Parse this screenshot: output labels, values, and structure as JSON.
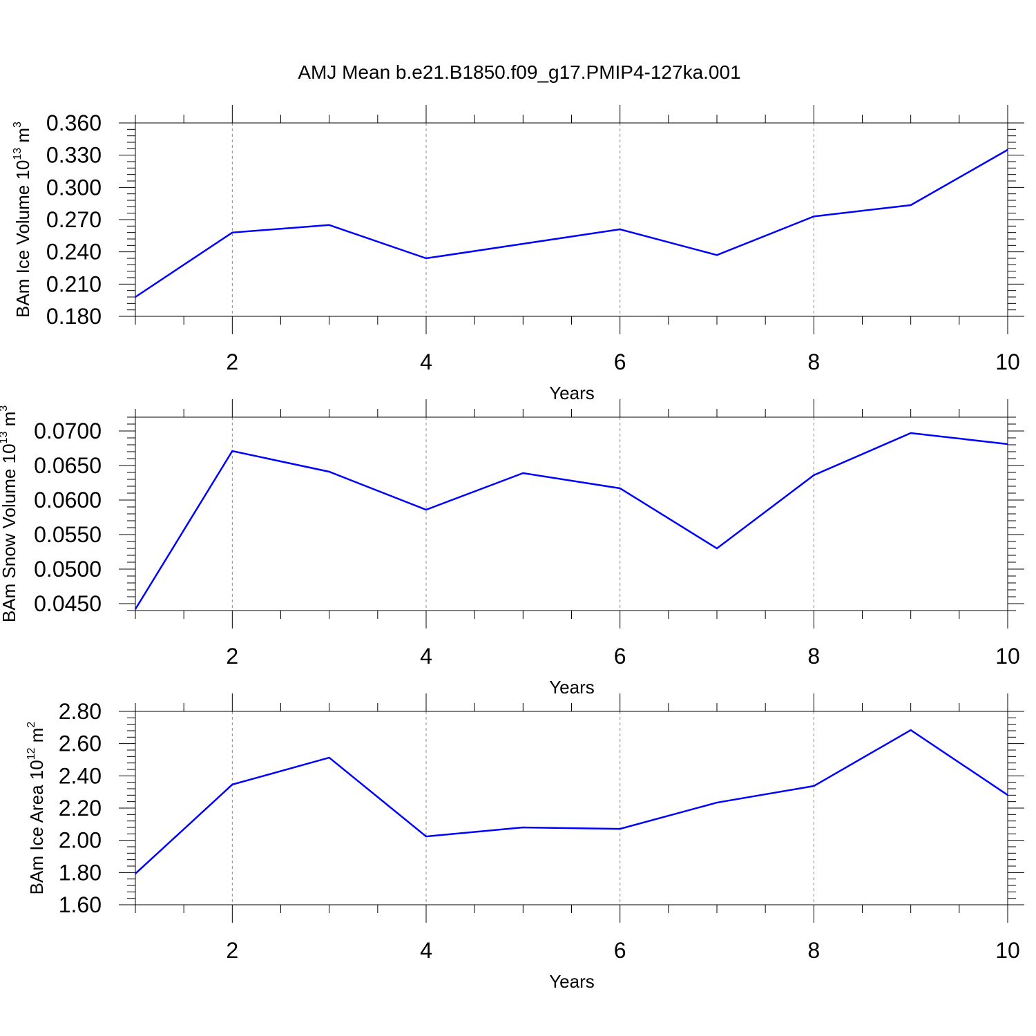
{
  "title": "AMJ Mean b.e21.B1850.f09_g17.PMIP4-127ka.001",
  "line_color": "#0000ff",
  "chart_data": [
    {
      "type": "line",
      "xlabel": "Years",
      "ylabel": {
        "text": "BAm Ice Volume 10",
        "sup1": "13",
        "unit": " m",
        "sup2": "3"
      },
      "x": [
        1,
        2,
        3,
        4,
        5,
        6,
        7,
        8,
        9,
        10
      ],
      "values": [
        0.198,
        0.258,
        0.265,
        0.234,
        0.2475,
        0.261,
        0.237,
        0.273,
        0.2835,
        0.335
      ],
      "xlim": [
        1,
        10
      ],
      "ylim": [
        0.18,
        0.36
      ],
      "xticks": [
        2,
        4,
        6,
        8,
        10
      ],
      "xtick_labels": [
        "2",
        "4",
        "6",
        "8",
        "10"
      ],
      "yticks": [
        0.18,
        0.21,
        0.24,
        0.27,
        0.3,
        0.33,
        0.36
      ],
      "ytick_labels": [
        "0.180",
        "0.210",
        "0.240",
        "0.270",
        "0.300",
        "0.330",
        "0.360"
      ],
      "grid": "vertical dashed"
    },
    {
      "type": "line",
      "xlabel": "Years",
      "ylabel": {
        "text": "BAm Snow Volume 10",
        "sup1": "13",
        "unit": " m",
        "sup2": "3"
      },
      "x": [
        1,
        2,
        3,
        4,
        5,
        6,
        7,
        8,
        9,
        10
      ],
      "values": [
        0.0442,
        0.0671,
        0.0641,
        0.0586,
        0.0639,
        0.0617,
        0.053,
        0.0636,
        0.0697,
        0.0681
      ],
      "xlim": [
        1,
        10
      ],
      "ylim": [
        0.044,
        0.072
      ],
      "xticks": [
        2,
        4,
        6,
        8,
        10
      ],
      "xtick_labels": [
        "2",
        "4",
        "6",
        "8",
        "10"
      ],
      "yticks": [
        0.045,
        0.05,
        0.055,
        0.06,
        0.065,
        0.07
      ],
      "ytick_labels": [
        "0.0450",
        "0.0500",
        "0.0550",
        "0.0600",
        "0.0650",
        "0.0700"
      ],
      "grid": "vertical dashed"
    },
    {
      "type": "line",
      "xlabel": "Years",
      "ylabel": {
        "text": "BAm Ice Area 10",
        "sup1": "12",
        "unit": " m",
        "sup2": "2"
      },
      "x": [
        1,
        2,
        3,
        4,
        5,
        6,
        7,
        8,
        9,
        10
      ],
      "values": [
        1.793,
        2.346,
        2.513,
        2.024,
        2.08,
        2.071,
        2.234,
        2.337,
        2.684,
        2.281
      ],
      "xlim": [
        1,
        10
      ],
      "ylim": [
        1.6,
        2.8
      ],
      "xticks": [
        2,
        4,
        6,
        8,
        10
      ],
      "xtick_labels": [
        "2",
        "4",
        "6",
        "8",
        "10"
      ],
      "yticks": [
        1.6,
        1.8,
        2.0,
        2.2,
        2.4,
        2.6,
        2.8
      ],
      "ytick_labels": [
        "1.60",
        "1.80",
        "2.00",
        "2.20",
        "2.40",
        "2.60",
        "2.80"
      ],
      "grid": "vertical dashed"
    }
  ]
}
